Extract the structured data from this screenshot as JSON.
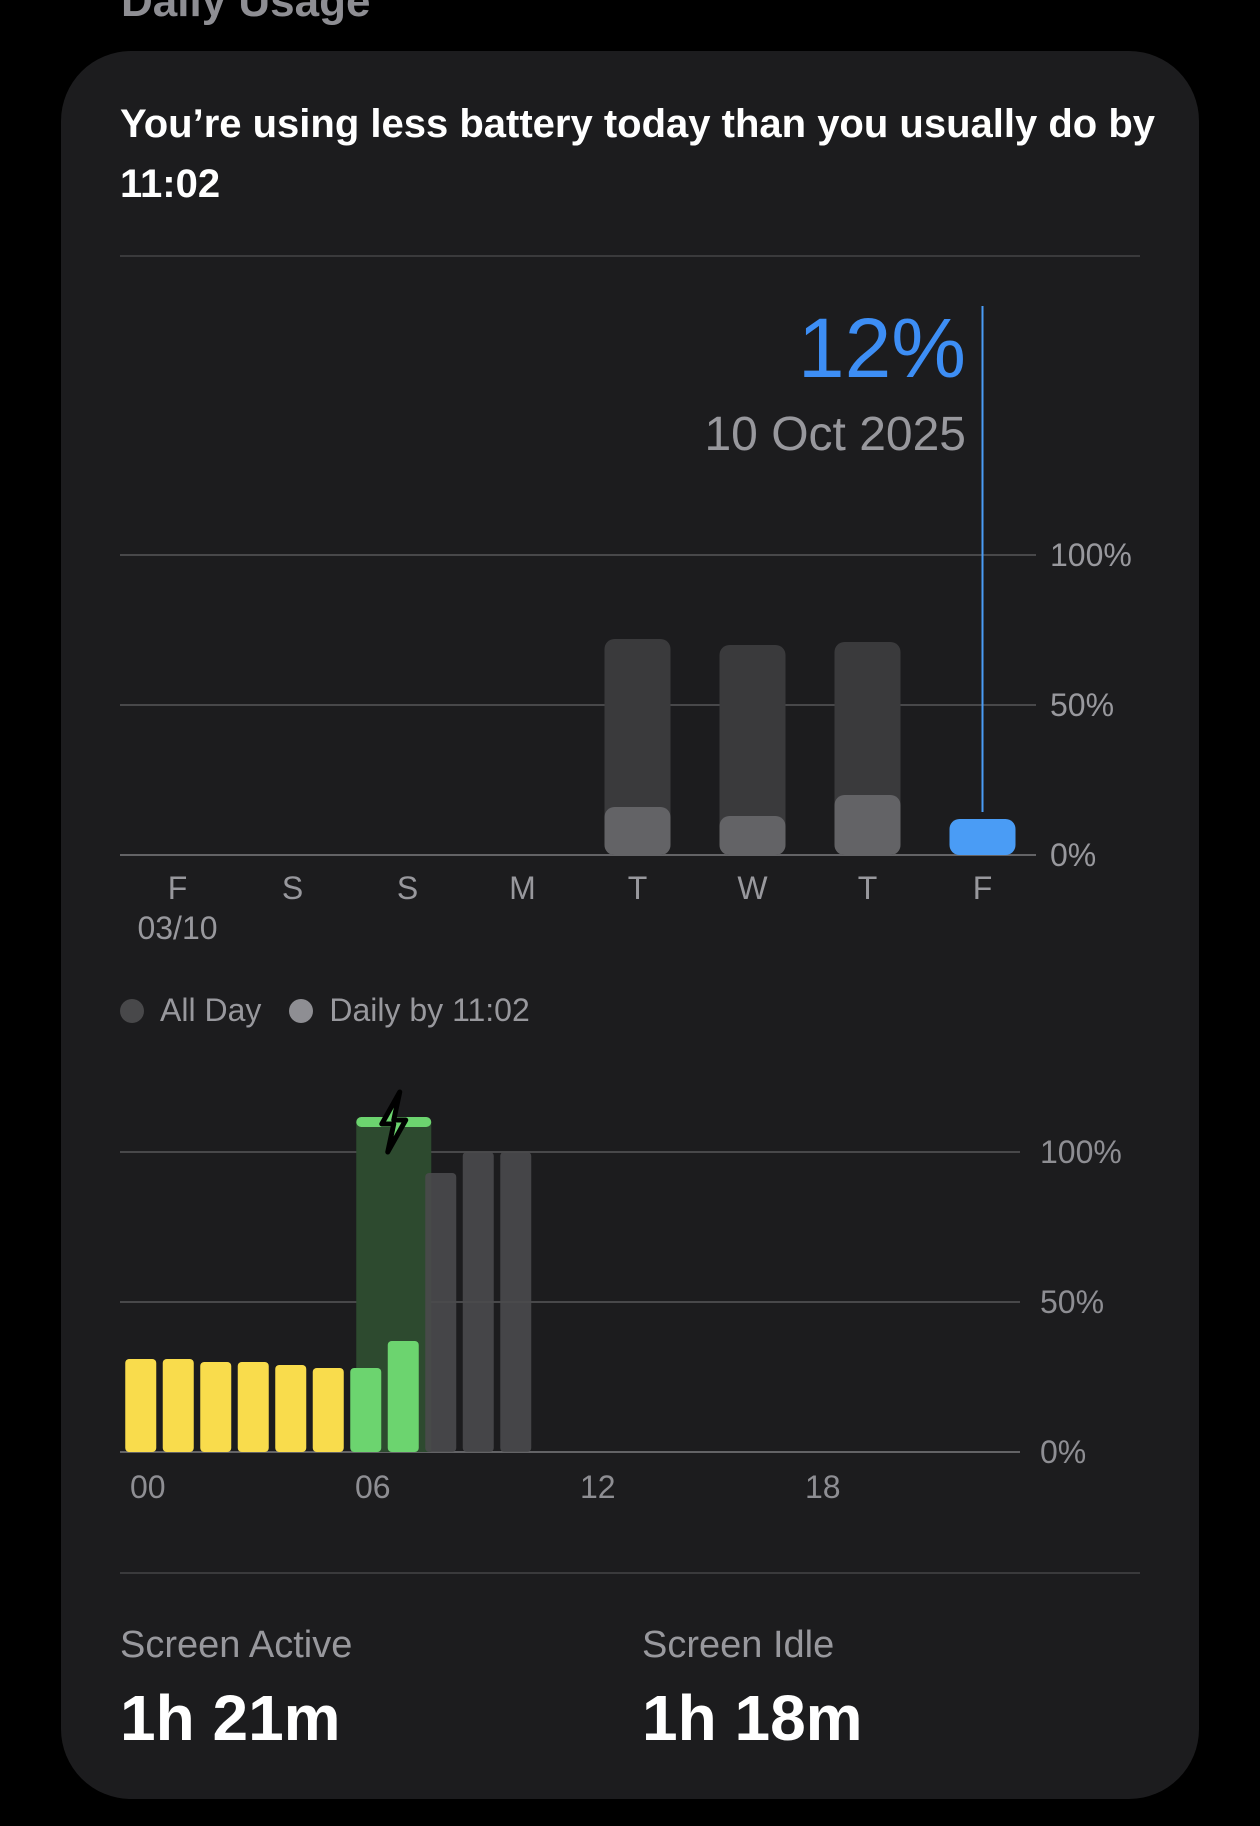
{
  "section_title": "Daily Usage",
  "headline": "You’re using less battery today than you usually do by 11:02",
  "selected": {
    "value": "12%",
    "date": "10 Oct 2025"
  },
  "legend": [
    {
      "label": "All Day",
      "color": "#48484a"
    },
    {
      "label": "Daily by 11:02",
      "color": "#8e8e93"
    }
  ],
  "chart_data": [
    {
      "type": "bar",
      "categories": [
        "F",
        "S",
        "S",
        "M",
        "T",
        "W",
        "T",
        "F"
      ],
      "sublabels": [
        "03/10",
        "",
        "",
        "",
        "",
        "",
        "",
        ""
      ],
      "series": [
        {
          "name": "All Day",
          "values": [
            null,
            null,
            null,
            null,
            72,
            70,
            71,
            null
          ]
        },
        {
          "name": "Daily by 11:02",
          "values": [
            null,
            null,
            null,
            null,
            16,
            13,
            20,
            12
          ]
        }
      ],
      "selected_index": 7,
      "y_ticks": [
        "100%",
        "50%",
        "0%"
      ],
      "ylim": [
        0,
        100
      ],
      "colors": {
        "all_day": "#3a3a3c",
        "daily_by": "#636366",
        "selected": "#4a9cf5",
        "selected_label": "#3d8ef5"
      }
    },
    {
      "type": "bar",
      "x_ticks": [
        "00",
        "06",
        "12",
        "18"
      ],
      "y_ticks": [
        "100%",
        "50%",
        "0%"
      ],
      "ylim": [
        0,
        100
      ],
      "hours": [
        {
          "hour": 0,
          "value": 31,
          "state": "battery"
        },
        {
          "hour": 1,
          "value": 31,
          "state": "battery"
        },
        {
          "hour": 2,
          "value": 30,
          "state": "battery"
        },
        {
          "hour": 3,
          "value": 30,
          "state": "battery"
        },
        {
          "hour": 4,
          "value": 29,
          "state": "battery"
        },
        {
          "hour": 5,
          "value": 28,
          "state": "battery"
        },
        {
          "hour": 6,
          "value": 28,
          "state": "charging"
        },
        {
          "hour": 7,
          "value": 37,
          "state": "charging"
        },
        {
          "hour": 8,
          "value": 93,
          "state": "other"
        },
        {
          "hour": 9,
          "value": 100,
          "state": "other"
        },
        {
          "hour": 10,
          "value": 100,
          "state": "other"
        }
      ],
      "charging_window": {
        "start_hour": 6.3,
        "end_hour": 8.3,
        "level": 110
      },
      "colors": {
        "battery": "#f9dc4c",
        "charging": "#6cd46f",
        "other": "#4a4a4c",
        "charging_band": "#2d4a2f",
        "charging_cap": "#6cd46f"
      }
    }
  ],
  "stats": [
    {
      "label": "Screen Active",
      "value": "1h 21m"
    },
    {
      "label": "Screen Idle",
      "value": "1h 18m"
    }
  ]
}
